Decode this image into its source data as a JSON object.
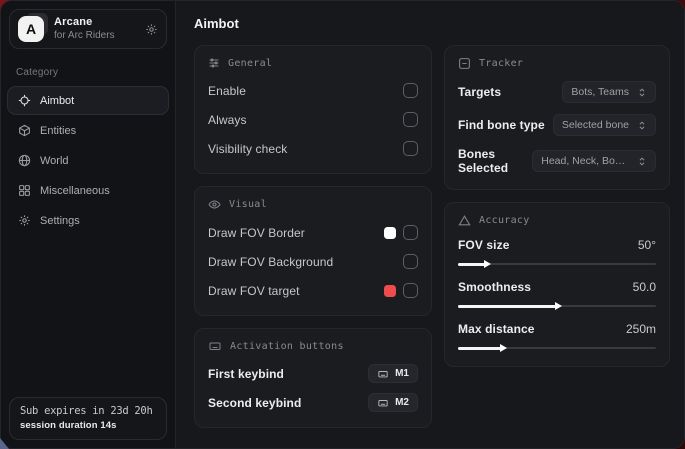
{
  "accent": "#ef4d4d",
  "sidebar": {
    "brand": {
      "initial": "A",
      "title": "Arcane",
      "subtitle": "for Arc Riders"
    },
    "category_label": "Category",
    "items": [
      {
        "label": "Aimbot",
        "icon": "crosshair-icon",
        "active": true
      },
      {
        "label": "Entities",
        "icon": "cube-icon",
        "active": false
      },
      {
        "label": "World",
        "icon": "globe-icon",
        "active": false
      },
      {
        "label": "Miscellaneous",
        "icon": "grid-icon",
        "active": false
      },
      {
        "label": "Settings",
        "icon": "gear-icon",
        "active": false
      }
    ],
    "subscription": {
      "line1": "Sub expires in 23d 20h",
      "line2": "session duration 14s"
    }
  },
  "main": {
    "title": "Aimbot",
    "cards": {
      "general": {
        "title": "General",
        "rows": [
          {
            "label": "Enable",
            "checked": false
          },
          {
            "label": "Always",
            "checked": false
          },
          {
            "label": "Visibility check",
            "checked": false
          }
        ]
      },
      "visual": {
        "title": "Visual",
        "rows": [
          {
            "label": "Draw FOV Border",
            "swatch": "#ffffff",
            "checked": false
          },
          {
            "label": "Draw FOV Background",
            "swatch": null,
            "checked": false
          },
          {
            "label": "Draw FOV target",
            "swatch": "#ef4d4d",
            "checked": false
          }
        ]
      },
      "activation": {
        "title": "Activation buttons",
        "rows": [
          {
            "label": "First keybind",
            "key": "M1"
          },
          {
            "label": "Second keybind",
            "key": "M2"
          }
        ]
      },
      "tracker": {
        "title": "Tracker",
        "rows": [
          {
            "label": "Targets",
            "value": "Bots, Teams"
          },
          {
            "label": "Find bone type",
            "value": "Selected bone"
          },
          {
            "label": "Bones Selected",
            "value": "Head, Neck, Body, Pe..."
          }
        ]
      },
      "accuracy": {
        "title": "Accuracy",
        "rows": [
          {
            "label": "FOV size",
            "value": "50°",
            "percent": 14
          },
          {
            "label": "Smoothness",
            "value": "50.0",
            "percent": 50
          },
          {
            "label": "Max distance",
            "value": "250m",
            "percent": 22
          }
        ]
      }
    }
  }
}
